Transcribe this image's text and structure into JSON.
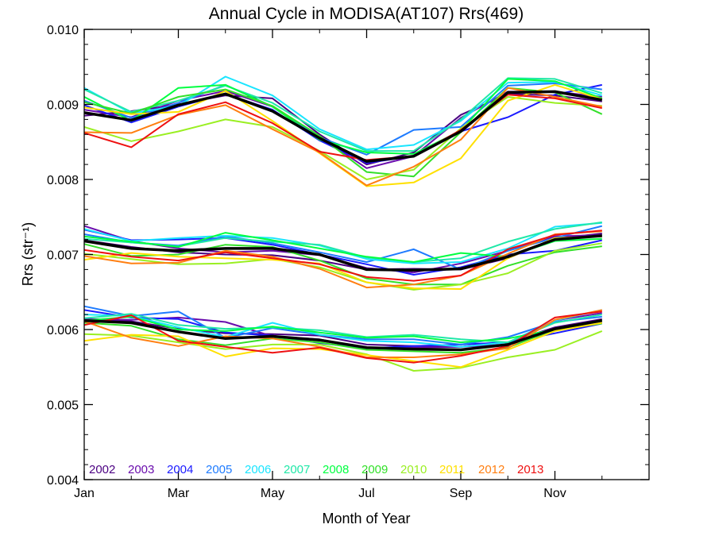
{
  "chart_data": {
    "type": "line",
    "title": "Annual Cycle in MODISA(AT107) Rrs(469)",
    "xlabel": "Month of Year",
    "ylabel": "Rrs (str⁻¹)",
    "x": [
      1,
      2,
      3,
      4,
      5,
      6,
      7,
      8,
      9,
      10,
      11,
      12
    ],
    "xlim": [
      1,
      13
    ],
    "ylim": [
      0.004,
      0.01
    ],
    "xticks": [
      {
        "value": 1,
        "label": "Jan"
      },
      {
        "value": 3,
        "label": "Mar"
      },
      {
        "value": 5,
        "label": "May"
      },
      {
        "value": 7,
        "label": "Jul"
      },
      {
        "value": 9,
        "label": "Sep"
      },
      {
        "value": 11,
        "label": "Nov"
      }
    ],
    "yticks": [
      {
        "value": 0.004,
        "label": "0.004"
      },
      {
        "value": 0.005,
        "label": "0.005"
      },
      {
        "value": 0.006,
        "label": "0.006"
      },
      {
        "value": 0.007,
        "label": "0.007"
      },
      {
        "value": 0.008,
        "label": "0.008"
      },
      {
        "value": 0.009,
        "label": "0.009"
      },
      {
        "value": 0.01,
        "label": "0.010"
      }
    ],
    "grid": false,
    "legend": "bottom-left",
    "groups": [
      {
        "series": [
          {
            "name": "2002",
            "color": "#4b0082",
            "values": [
              0.00885,
              0.00891,
              0.009,
              0.00912,
              0.00908,
              0.0086,
              0.0082,
              0.00836,
              0.00886,
              0.00914,
              0.00912,
              0.00904
            ]
          },
          {
            "name": "2003",
            "color": "#6a0dad",
            "values": [
              0.00893,
              0.00883,
              0.00905,
              0.00918,
              0.00897,
              0.00857,
              0.00815,
              0.00831,
              0.00882,
              0.00917,
              0.00917,
              0.0091
            ]
          },
          {
            "name": "2004",
            "color": "#1a1aff",
            "values": [
              0.00899,
              0.00876,
              0.00897,
              0.00914,
              0.00893,
              0.00852,
              0.00822,
              0.00831,
              0.00864,
              0.00883,
              0.00913,
              0.00926
            ]
          },
          {
            "name": "2005",
            "color": "#1e7bff",
            "values": [
              0.00905,
              0.00882,
              0.00902,
              0.00926,
              0.00897,
              0.00856,
              0.00833,
              0.00866,
              0.0087,
              0.00925,
              0.00928,
              0.0092
            ]
          },
          {
            "name": "2006",
            "color": "#19e5ff",
            "values": [
              0.00922,
              0.00888,
              0.00898,
              0.00937,
              0.00912,
              0.00867,
              0.0084,
              0.00846,
              0.00878,
              0.00929,
              0.0093,
              0.00912
            ]
          },
          {
            "name": "2007",
            "color": "#20e8a8",
            "values": [
              0.0092,
              0.0089,
              0.00905,
              0.00925,
              0.00902,
              0.00864,
              0.00838,
              0.00838,
              0.0088,
              0.00935,
              0.00934,
              0.00915
            ]
          },
          {
            "name": "2008",
            "color": "#00ff40",
            "values": [
              0.0091,
              0.00878,
              0.00922,
              0.00926,
              0.00897,
              0.00853,
              0.00836,
              0.00834,
              0.00865,
              0.00934,
              0.00931,
              0.00908
            ]
          },
          {
            "name": "2009",
            "color": "#33e02a",
            "values": [
              0.00903,
              0.00888,
              0.0091,
              0.0092,
              0.00898,
              0.00858,
              0.0081,
              0.00804,
              0.00863,
              0.00922,
              0.00916,
              0.00887
            ]
          },
          {
            "name": "2010",
            "color": "#9aef22",
            "values": [
              0.0087,
              0.00851,
              0.00864,
              0.0088,
              0.0087,
              0.00838,
              0.008,
              0.00813,
              0.00868,
              0.0091,
              0.00902,
              0.00898
            ]
          },
          {
            "name": "2011",
            "color": "#ffe000",
            "values": [
              0.00896,
              0.00887,
              0.0089,
              0.00918,
              0.00878,
              0.00835,
              0.00791,
              0.00796,
              0.00828,
              0.00905,
              0.00926,
              0.00907
            ]
          },
          {
            "name": "2012",
            "color": "#ff7f11",
            "values": [
              0.00863,
              0.00862,
              0.00886,
              0.00899,
              0.00867,
              0.00836,
              0.00792,
              0.00817,
              0.00853,
              0.00922,
              0.0091,
              0.00897
            ]
          },
          {
            "name": "2013",
            "color": "#ee1111",
            "values": [
              0.00862,
              0.00843,
              0.00887,
              0.00903,
              0.00875,
              0.00837,
              0.00826,
              0.00831,
              0.00866,
              0.00913,
              0.00908,
              0.00895
            ]
          }
        ],
        "mean": [
          0.00889,
          0.00879,
          0.00899,
          0.00914,
          0.00891,
          0.00855,
          0.00824,
          0.00831,
          0.00864,
          0.00916,
          0.00917,
          0.00906
        ]
      },
      {
        "series": [
          {
            "name": "2002",
            "color": "#4b0082",
            "values": [
              0.00719,
              0.0071,
              0.00703,
              0.007,
              0.00699,
              0.00692,
              0.0068,
              0.00681,
              0.0068,
              0.00695,
              0.00721,
              0.00728
            ]
          },
          {
            "name": "2003",
            "color": "#6a0dad",
            "values": [
              0.00738,
              0.00718,
              0.00708,
              0.00703,
              0.00705,
              0.00699,
              0.00682,
              0.00676,
              0.00688,
              0.00705,
              0.00724,
              0.00726
            ]
          },
          {
            "name": "2004",
            "color": "#1a1aff",
            "values": [
              0.00733,
              0.00719,
              0.0072,
              0.00722,
              0.00713,
              0.007,
              0.00687,
              0.00673,
              0.00683,
              0.007,
              0.00705,
              0.00719
            ]
          },
          {
            "name": "2005",
            "color": "#1e7bff",
            "values": [
              0.00727,
              0.00716,
              0.00712,
              0.00724,
              0.00715,
              0.00703,
              0.0069,
              0.00707,
              0.0068,
              0.00705,
              0.00722,
              0.00738
            ]
          },
          {
            "name": "2006",
            "color": "#19e5ff",
            "values": [
              0.00734,
              0.00718,
              0.00722,
              0.00725,
              0.00722,
              0.00712,
              0.00694,
              0.00688,
              0.0069,
              0.00708,
              0.00737,
              0.00742
            ]
          },
          {
            "name": "2007",
            "color": "#20e8a8",
            "values": [
              0.00721,
              0.00716,
              0.00711,
              0.00722,
              0.00717,
              0.00713,
              0.00696,
              0.0069,
              0.00695,
              0.00717,
              0.00734,
              0.00743
            ]
          },
          {
            "name": "2008",
            "color": "#00ff40",
            "values": [
              0.00724,
              0.00717,
              0.0071,
              0.00729,
              0.00719,
              0.00708,
              0.00697,
              0.0069,
              0.00702,
              0.00697,
              0.00718,
              0.00721
            ]
          },
          {
            "name": "2009",
            "color": "#33e02a",
            "values": [
              0.00714,
              0.00698,
              0.007,
              0.00713,
              0.0071,
              0.00692,
              0.00668,
              0.0066,
              0.0066,
              0.00685,
              0.00703,
              0.00711
            ]
          },
          {
            "name": "2010",
            "color": "#9aef22",
            "values": [
              0.00701,
              0.00694,
              0.00687,
              0.00688,
              0.00694,
              0.00683,
              0.00663,
              0.00653,
              0.0066,
              0.00675,
              0.00705,
              0.00715
            ]
          },
          {
            "name": "2011",
            "color": "#ffe000",
            "values": [
              0.00693,
              0.00702,
              0.00697,
              0.00695,
              0.00693,
              0.00688,
              0.00663,
              0.00655,
              0.00654,
              0.00695,
              0.00722,
              0.00724
            ]
          },
          {
            "name": "2012",
            "color": "#ff7f11",
            "values": [
              0.00698,
              0.00688,
              0.00689,
              0.00705,
              0.00697,
              0.00681,
              0.00656,
              0.0066,
              0.00672,
              0.00701,
              0.00727,
              0.00731
            ]
          },
          {
            "name": "2013",
            "color": "#ee1111",
            "values": [
              0.00706,
              0.00697,
              0.00692,
              0.00703,
              0.00695,
              0.00687,
              0.0067,
              0.00665,
              0.00672,
              0.00707,
              0.00726,
              0.00732
            ]
          }
        ],
        "mean": [
          0.00718,
          0.00708,
          0.00705,
          0.00708,
          0.00708,
          0.007,
          0.0068,
          0.00679,
          0.00681,
          0.00697,
          0.0072,
          0.00725
        ]
      },
      {
        "series": [
          {
            "name": "2002",
            "color": "#4b0082",
            "values": [
              0.00614,
              0.00611,
              0.00601,
              0.00595,
              0.00594,
              0.00592,
              0.0058,
              0.00578,
              0.00577,
              0.00583,
              0.00603,
              0.00614
            ]
          },
          {
            "name": "2003",
            "color": "#6a0dad",
            "values": [
              0.00614,
              0.00613,
              0.00616,
              0.0061,
              0.00591,
              0.00587,
              0.00575,
              0.00576,
              0.00577,
              0.0058,
              0.00612,
              0.00622
            ]
          },
          {
            "name": "2004",
            "color": "#1a1aff",
            "values": [
              0.00626,
              0.00616,
              0.00614,
              0.00596,
              0.00592,
              0.00582,
              0.00575,
              0.00578,
              0.0058,
              0.00583,
              0.00595,
              0.00608
            ]
          },
          {
            "name": "2005",
            "color": "#1e7bff",
            "values": [
              0.00631,
              0.00618,
              0.00624,
              0.00589,
              0.00602,
              0.00593,
              0.00587,
              0.00587,
              0.0058,
              0.0059,
              0.0061,
              0.00617
            ]
          },
          {
            "name": "2006",
            "color": "#19e5ff",
            "values": [
              0.0062,
              0.00618,
              0.00603,
              0.0059,
              0.00609,
              0.00593,
              0.00585,
              0.00583,
              0.00577,
              0.00583,
              0.00612,
              0.00626
            ]
          },
          {
            "name": "2007",
            "color": "#20e8a8",
            "values": [
              0.00615,
              0.00621,
              0.00606,
              0.00601,
              0.00603,
              0.00599,
              0.0059,
              0.00593,
              0.00587,
              0.00583,
              0.00609,
              0.0062
            ]
          },
          {
            "name": "2008",
            "color": "#00ff40",
            "values": [
              0.00612,
              0.00617,
              0.006,
              0.00598,
              0.00604,
              0.00596,
              0.00589,
              0.00591,
              0.00583,
              0.00588,
              0.006,
              0.00612
            ]
          },
          {
            "name": "2009",
            "color": "#33e02a",
            "values": [
              0.00609,
              0.00605,
              0.00587,
              0.00579,
              0.00588,
              0.00583,
              0.00573,
              0.00571,
              0.00569,
              0.00576,
              0.006,
              0.00608
            ]
          },
          {
            "name": "2010",
            "color": "#9aef22",
            "values": [
              0.00594,
              0.00592,
              0.00583,
              0.00574,
              0.0058,
              0.0058,
              0.00567,
              0.00545,
              0.00549,
              0.00563,
              0.00573,
              0.00598
            ]
          },
          {
            "name": "2011",
            "color": "#ffe000",
            "values": [
              0.00585,
              0.00593,
              0.00591,
              0.00564,
              0.00575,
              0.00574,
              0.00566,
              0.00558,
              0.0055,
              0.00573,
              0.00598,
              0.00609
            ]
          },
          {
            "name": "2012",
            "color": "#ff7f11",
            "values": [
              0.00611,
              0.00589,
              0.00578,
              0.00591,
              0.00588,
              0.00577,
              0.00563,
              0.00563,
              0.00567,
              0.00575,
              0.00613,
              0.00626
            ]
          },
          {
            "name": "2013",
            "color": "#ee1111",
            "values": [
              0.00606,
              0.00619,
              0.00585,
              0.00577,
              0.00569,
              0.00576,
              0.00562,
              0.00556,
              0.00565,
              0.00578,
              0.00616,
              0.00624
            ]
          }
        ],
        "mean": [
          0.00612,
          0.00609,
          0.00597,
          0.00588,
          0.00591,
          0.00586,
          0.00576,
          0.00574,
          0.00573,
          0.0058,
          0.00601,
          0.00612
        ]
      }
    ],
    "mean_line": {
      "color": "#000000"
    },
    "legend_items": [
      {
        "label": "2002",
        "color": "#4b0082"
      },
      {
        "label": "2003",
        "color": "#6a0dad"
      },
      {
        "label": "2004",
        "color": "#1a1aff"
      },
      {
        "label": "2005",
        "color": "#1e7bff"
      },
      {
        "label": "2006",
        "color": "#19e5ff"
      },
      {
        "label": "2007",
        "color": "#20e8a8"
      },
      {
        "label": "2008",
        "color": "#00ff40"
      },
      {
        "label": "2009",
        "color": "#33e02a"
      },
      {
        "label": "2010",
        "color": "#9aef22"
      },
      {
        "label": "2011",
        "color": "#ffe000"
      },
      {
        "label": "2012",
        "color": "#ff7f11"
      },
      {
        "label": "2013",
        "color": "#ee1111"
      }
    ]
  }
}
